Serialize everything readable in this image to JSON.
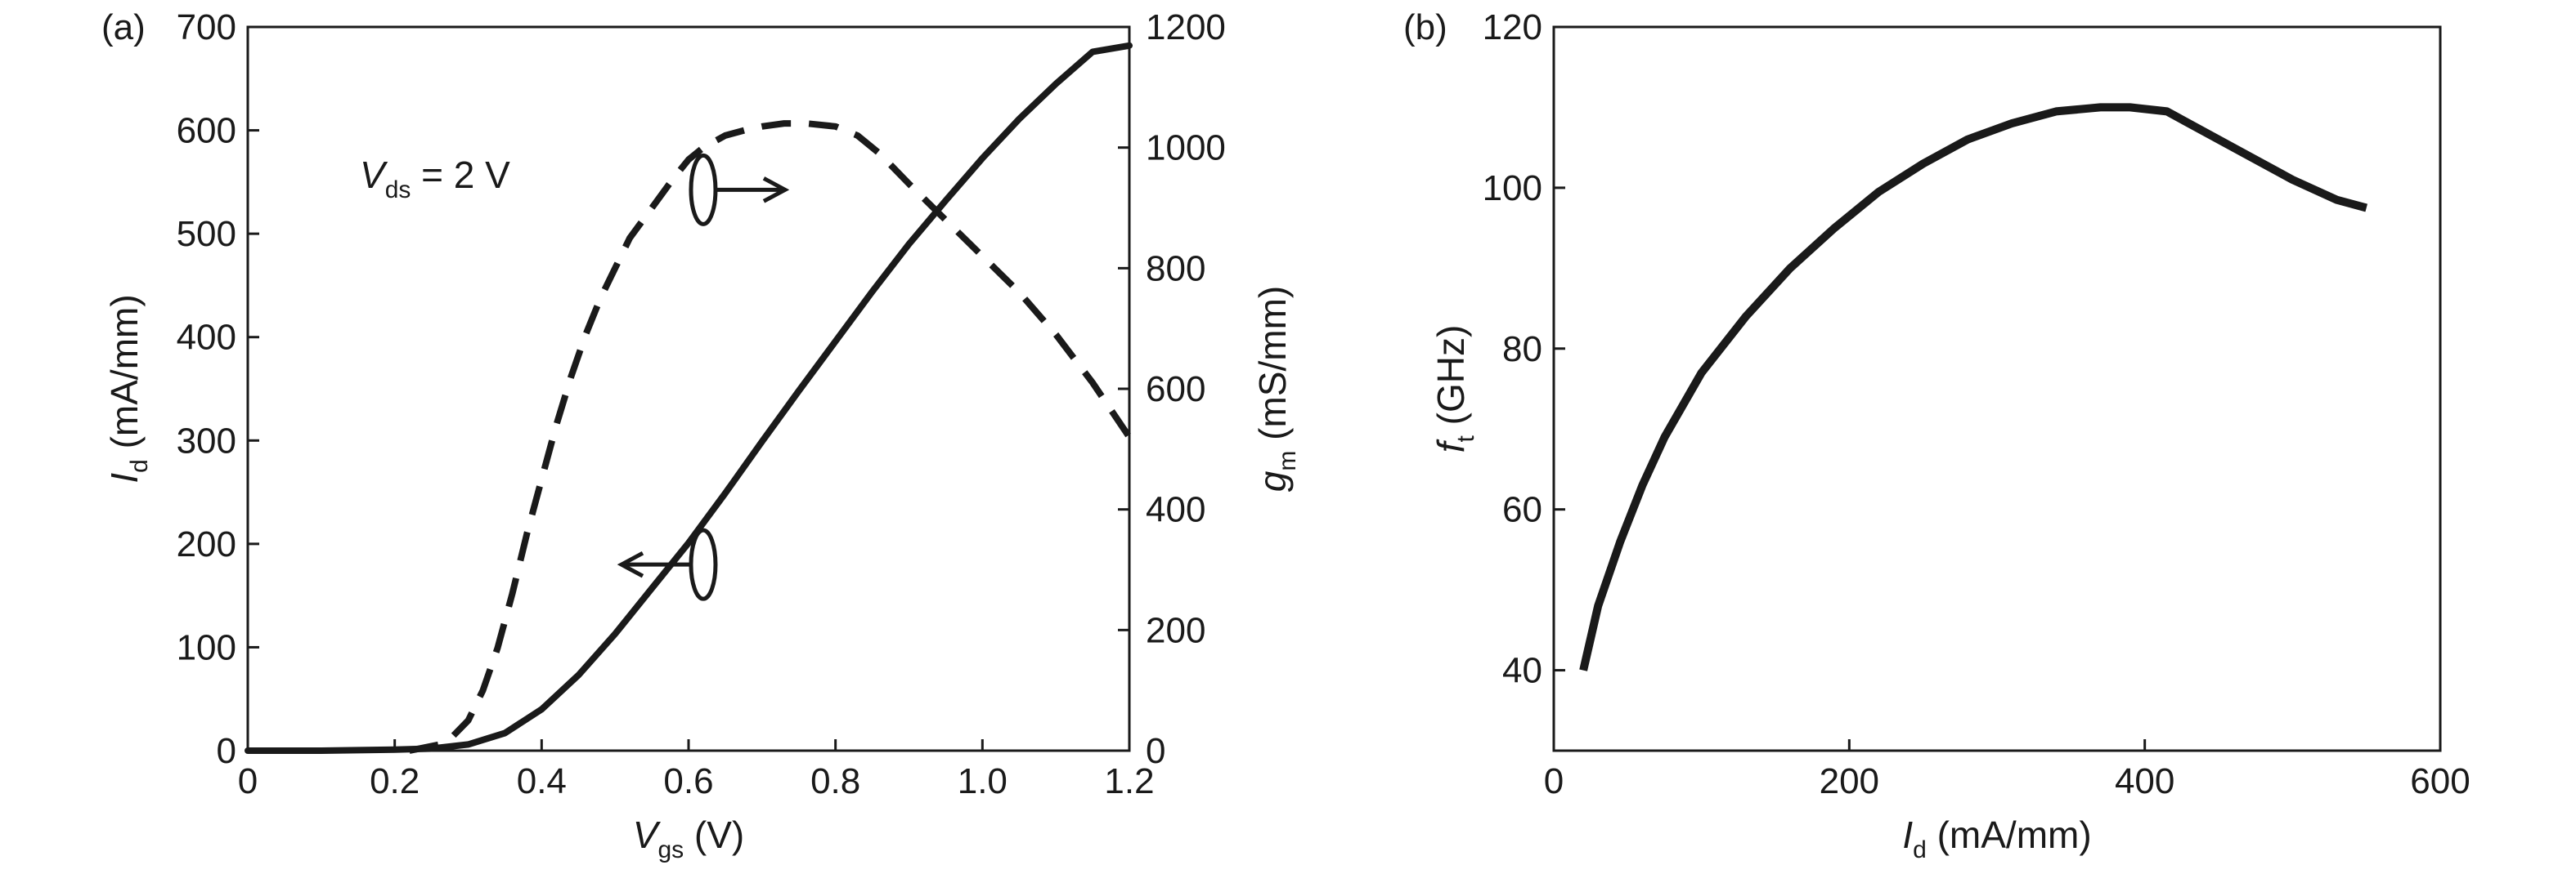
{
  "chart_data": [
    {
      "type": "line",
      "panel_label": "(a)",
      "x": {
        "label_main": "V",
        "label_sub": "gs",
        "label_unit": " (V)",
        "range": [
          0,
          1.2
        ],
        "ticks": [
          0,
          0.2,
          0.4,
          0.6,
          0.8,
          1.0,
          1.2
        ],
        "tick_labels": [
          "0",
          "0.2",
          "0.4",
          "0.6",
          "0.8",
          "1.0",
          "1.2"
        ]
      },
      "y_left": {
        "label_main": "I",
        "label_sub": "d",
        "label_unit": " (mA/mm)",
        "range": [
          0,
          700
        ],
        "ticks": [
          0,
          100,
          200,
          300,
          400,
          500,
          600,
          700
        ],
        "tick_labels": [
          "0",
          "100",
          "200",
          "300",
          "400",
          "500",
          "600",
          "700"
        ]
      },
      "y_right": {
        "label_main": "g",
        "label_sub": "m",
        "label_unit": " (mS/mm)",
        "range": [
          0,
          1200
        ],
        "ticks": [
          0,
          200,
          400,
          600,
          800,
          1000,
          1200
        ],
        "tick_labels": [
          "0",
          "200",
          "400",
          "600",
          "800",
          "1000",
          "1200"
        ]
      },
      "annotation": {
        "main": "V",
        "sub": "ds",
        "rest": " = 2 V"
      },
      "series": [
        {
          "key": "id",
          "axis": "left",
          "style": "solid",
          "x": [
            0,
            0.1,
            0.2,
            0.25,
            0.3,
            0.35,
            0.4,
            0.45,
            0.5,
            0.55,
            0.6,
            0.65,
            0.7,
            0.75,
            0.8,
            0.85,
            0.9,
            0.95,
            1.0,
            1.05,
            1.1,
            1.15,
            1.2
          ],
          "values": [
            0,
            0,
            1,
            2,
            6,
            17,
            40,
            73,
            113,
            157,
            201,
            249,
            299,
            348,
            396,
            444,
            490,
            532,
            573,
            611,
            645,
            676,
            682
          ]
        },
        {
          "key": "gm",
          "axis": "right",
          "style": "dashed",
          "x": [
            0.22,
            0.26,
            0.28,
            0.3,
            0.32,
            0.34,
            0.36,
            0.38,
            0.4,
            0.42,
            0.44,
            0.46,
            0.48,
            0.5,
            0.52,
            0.55,
            0.58,
            0.6,
            0.62,
            0.65,
            0.68,
            0.7,
            0.73,
            0.76,
            0.8,
            0.83,
            0.86,
            0.9,
            0.95,
            1.0,
            1.05,
            1.1,
            1.15,
            1.2
          ],
          "values": [
            0,
            10,
            25,
            50,
            100,
            170,
            260,
            360,
            450,
            540,
            620,
            690,
            750,
            800,
            850,
            900,
            950,
            980,
            1000,
            1020,
            1030,
            1035,
            1040,
            1040,
            1035,
            1020,
            990,
            940,
            880,
            820,
            760,
            690,
            610,
            520
          ]
        }
      ],
      "markers": [
        {
          "series": "gm",
          "arrow": "right",
          "x": 0.62,
          "y": 930
        },
        {
          "series": "id",
          "arrow": "left",
          "x": 0.62,
          "y": 180
        }
      ]
    },
    {
      "type": "line",
      "panel_label": "(b)",
      "x": {
        "label_main": "I",
        "label_sub": "d",
        "label_unit": " (mA/mm)",
        "range": [
          0,
          600
        ],
        "ticks": [
          0,
          200,
          400,
          600
        ],
        "tick_labels": [
          "0",
          "200",
          "400",
          "600"
        ]
      },
      "y_left": {
        "label_main": "f",
        "label_sub": "t",
        "label_unit": " (GHz)",
        "range": [
          30,
          120
        ],
        "ticks": [
          40,
          60,
          80,
          100,
          120
        ],
        "tick_labels": [
          "40",
          "60",
          "80",
          "100",
          "120"
        ]
      },
      "series": [
        {
          "key": "ft",
          "axis": "left",
          "style": "solid",
          "x": [
            20,
            30,
            45,
            60,
            75,
            100,
            130,
            160,
            190,
            220,
            250,
            280,
            310,
            340,
            370,
            390,
            415,
            440,
            470,
            500,
            530,
            550
          ],
          "values": [
            40,
            48,
            56,
            63,
            69,
            77,
            84,
            90,
            95,
            99.5,
            103,
            106,
            108,
            109.5,
            110,
            110,
            109.5,
            107,
            104,
            101,
            98.5,
            97.5
          ]
        }
      ]
    }
  ]
}
